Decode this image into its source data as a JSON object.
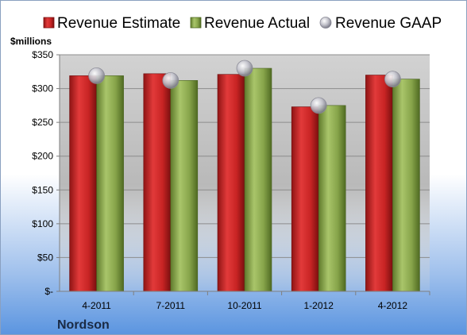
{
  "chart_data": {
    "type": "bar",
    "categories": [
      "4-2011",
      "7-2011",
      "10-2011",
      "1-2012",
      "4-2012"
    ],
    "series": [
      {
        "name": "Revenue Estimate",
        "values": [
          319,
          322,
          321,
          273,
          320
        ],
        "color": "#cc2a2a"
      },
      {
        "name": "Revenue Actual",
        "values": [
          319,
          312,
          330,
          275,
          314
        ],
        "color": "#8fae4f"
      },
      {
        "name": "Revenue GAAP",
        "values": [
          319,
          312,
          330,
          275,
          314
        ],
        "color": "#c8c8d0",
        "marker": "circle"
      }
    ],
    "ylabel": "$millions",
    "ylim": [
      0,
      350
    ],
    "yticks": [
      0,
      50,
      100,
      150,
      200,
      250,
      300,
      350
    ],
    "ytick_labels": [
      "$-",
      "$50",
      "$100",
      "$150",
      "$200",
      "$250",
      "$300",
      "$350"
    ],
    "grid": true,
    "legend": "top",
    "company": "Nordson"
  }
}
